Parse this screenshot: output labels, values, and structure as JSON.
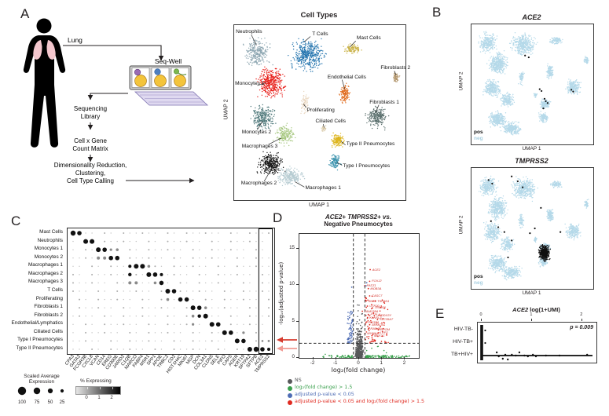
{
  "panels": {
    "a": {
      "label": "A",
      "workflow": {
        "organ_label": "Lung",
        "platform_label": "Seq-Well",
        "step1_line1": "Sequencing",
        "step1_line2": "Library",
        "step2_line1": "Cell x Gene",
        "step2_line2": "Count Matrix",
        "step3_line1": "Dimensionality Reduction,",
        "step3_line2": "Clustering,",
        "step3_line3": "Cell Type Calling"
      }
    },
    "b": {
      "label": "B"
    },
    "c": {
      "label": "C"
    },
    "d": {
      "label": "D"
    },
    "e": {
      "label": "E"
    }
  },
  "chart_data": {
    "cell_types_umap": {
      "type": "scatter",
      "title": "Cell Types",
      "xlabel": "UMAP 1",
      "ylabel": "UMAP 2",
      "clusters": [
        {
          "name": "Neutrophils",
          "color": "#8ea7b2",
          "cx": 0.135,
          "cy": 0.155,
          "rx": 0.095,
          "ry": 0.1,
          "n": 280
        },
        {
          "name": "T Cells",
          "color": "#2374ae",
          "cx": 0.43,
          "cy": 0.17,
          "rx": 0.125,
          "ry": 0.115,
          "n": 420
        },
        {
          "name": "Monocytes 1",
          "color": "#e8221d",
          "cx": 0.215,
          "cy": 0.33,
          "rx": 0.095,
          "ry": 0.115,
          "n": 400
        },
        {
          "name": "Monocytes 2",
          "color": "#527b7d",
          "cx": 0.17,
          "cy": 0.53,
          "rx": 0.085,
          "ry": 0.095,
          "n": 260
        },
        {
          "name": "Macrophages 3",
          "color": "#a6c77f",
          "cx": 0.295,
          "cy": 0.63,
          "rx": 0.07,
          "ry": 0.075,
          "n": 170
        },
        {
          "name": "Macrophages 2",
          "color": "#141414",
          "cx": 0.215,
          "cy": 0.79,
          "rx": 0.09,
          "ry": 0.08,
          "n": 300
        },
        {
          "name": "Macrophages 1",
          "color": "#b7ccd2",
          "cx": 0.33,
          "cy": 0.865,
          "rx": 0.095,
          "ry": 0.065,
          "n": 260
        },
        {
          "name": "Proliferating",
          "color": "#e9d6bf",
          "cx": 0.41,
          "cy": 0.44,
          "rx": 0.03,
          "ry": 0.075,
          "n": 70
        },
        {
          "name": "Mast Cells",
          "color": "#c9b145",
          "cx": 0.695,
          "cy": 0.135,
          "rx": 0.065,
          "ry": 0.035,
          "n": 100
        },
        {
          "name": "Fibroblasts 2",
          "color": "#b1946a",
          "cx": 0.945,
          "cy": 0.295,
          "rx": 0.025,
          "ry": 0.045,
          "n": 55
        },
        {
          "name": "Endothelial Cells",
          "color": "#e06c1f",
          "cx": 0.645,
          "cy": 0.39,
          "rx": 0.035,
          "ry": 0.07,
          "n": 130
        },
        {
          "name": "Fibroblasts 1",
          "color": "#5a6f6d",
          "cx": 0.835,
          "cy": 0.525,
          "rx": 0.075,
          "ry": 0.08,
          "n": 230
        },
        {
          "name": "Ciliated Cells",
          "color": "#d9c9a8",
          "cx": 0.525,
          "cy": 0.59,
          "rx": 0.018,
          "ry": 0.028,
          "n": 28
        },
        {
          "name": "Type II Pneumocytes",
          "color": "#ddb51e",
          "cx": 0.605,
          "cy": 0.66,
          "rx": 0.055,
          "ry": 0.05,
          "n": 160
        },
        {
          "name": "Type I Pneumocytes",
          "color": "#3c93ae",
          "cx": 0.59,
          "cy": 0.775,
          "rx": 0.045,
          "ry": 0.055,
          "n": 120
        }
      ],
      "labels": [
        {
          "t": "Neutrophils",
          "x": 0.01,
          "y": 0.025,
          "line": [
            0.1,
            0.055,
            0.13,
            0.115
          ]
        },
        {
          "t": "T Cells",
          "x": 0.455,
          "y": 0.04,
          "line": [
            0.445,
            0.065,
            0.41,
            0.095
          ]
        },
        {
          "t": "Mast Cells",
          "x": 0.715,
          "y": 0.062,
          "line": [
            0.71,
            0.09,
            0.675,
            0.125
          ]
        },
        {
          "t": "Fibroblasts 2",
          "x": 0.855,
          "y": 0.235,
          "line": [
            0.935,
            0.262,
            0.945,
            0.285
          ]
        },
        {
          "t": "Endothelial Cells",
          "x": 0.545,
          "y": 0.285,
          "line": [
            0.63,
            0.312,
            0.645,
            0.365
          ]
        },
        {
          "t": "Fibroblasts 1",
          "x": 0.79,
          "y": 0.43,
          "line": [
            0.845,
            0.455,
            0.825,
            0.5
          ]
        },
        {
          "t": "Monocytes 1",
          "x": 0.005,
          "y": 0.325,
          "line": [
            0.135,
            0.345,
            0.185,
            0.33
          ]
        },
        {
          "t": "Proliferating",
          "x": 0.425,
          "y": 0.475,
          "line": [
            0.42,
            0.472,
            0.405,
            0.45
          ]
        },
        {
          "t": "Ciliated Cells",
          "x": 0.475,
          "y": 0.538,
          "line": [
            0.52,
            0.565,
            0.525,
            0.585
          ]
        },
        {
          "t": "Monocytes 2",
          "x": 0.045,
          "y": 0.6,
          "line": [
            0.135,
            0.598,
            0.165,
            0.55
          ]
        },
        {
          "t": "Macrophages 3",
          "x": 0.045,
          "y": 0.683,
          "line": [
            0.2,
            0.682,
            0.275,
            0.645
          ]
        },
        {
          "t": "Type II Pneumocytes",
          "x": 0.655,
          "y": 0.668,
          "line": [
            0.65,
            0.685,
            0.625,
            0.665
          ]
        },
        {
          "t": "Type I Pneumocytes",
          "x": 0.635,
          "y": 0.793,
          "line": [
            0.63,
            0.8,
            0.6,
            0.785
          ]
        },
        {
          "t": "Macrophages 2",
          "x": 0.04,
          "y": 0.893,
          "line": [
            0.175,
            0.892,
            0.21,
            0.835
          ]
        },
        {
          "t": "Macrophages 1",
          "x": 0.415,
          "y": 0.918,
          "line": [
            0.41,
            0.925,
            0.355,
            0.895
          ]
        }
      ]
    },
    "ace2_umap": {
      "type": "scatter",
      "title": "ACE2",
      "xlabel": "UMAP 1",
      "ylabel": "UMAP 2",
      "legend_pos": "pos",
      "legend_neg": "neg",
      "neg_color": "#b5d9e9",
      "pos_color": "#111111",
      "pos_points": [
        [
          0.44,
          0.26
        ],
        [
          0.47,
          0.275
        ],
        [
          0.56,
          0.54
        ],
        [
          0.575,
          0.555
        ],
        [
          0.6,
          0.62
        ],
        [
          0.61,
          0.64
        ],
        [
          0.625,
          0.655
        ],
        [
          0.82,
          0.545
        ],
        [
          0.835,
          0.56
        ],
        [
          0.59,
          0.7
        ]
      ]
    },
    "tmprss2_umap": {
      "type": "scatter",
      "title": "TMPRSS2",
      "xlabel": "UMAP 1",
      "ylabel": "UMAP 2",
      "legend_pos": "pos",
      "legend_neg": "neg",
      "neg_color": "#b5d9e9",
      "pos_color": "#111111",
      "pos_blob": {
        "cx": 0.6,
        "cy": 0.7,
        "rx": 0.055,
        "ry": 0.085,
        "n": 420
      },
      "pos_points": [
        [
          0.14,
          0.1
        ],
        [
          0.17,
          0.13
        ],
        [
          0.33,
          0.07
        ],
        [
          0.38,
          0.11
        ],
        [
          0.42,
          0.16
        ],
        [
          0.16,
          0.44
        ],
        [
          0.22,
          0.49
        ],
        [
          0.27,
          0.53
        ],
        [
          0.33,
          0.6
        ],
        [
          0.48,
          0.54
        ],
        [
          0.52,
          0.5
        ],
        [
          0.73,
          0.53
        ],
        [
          0.57,
          0.33
        ],
        [
          0.3,
          0.74
        ]
      ]
    },
    "marker_dotplot": {
      "type": "table",
      "rows": [
        "Mast Cells",
        "Neutrophils",
        "Monocytes 1",
        "Monocytes 2",
        "Macrophages 1",
        "Macrophages 2",
        "Macrophages 3",
        "T Cells",
        "Proliferating",
        "Fibroblasts 1",
        "Fibroblasts 2",
        "Endothelial/Lymphatics",
        "Ciliated Cells",
        "Type I Pneumocytes",
        "Type II Pneumocytes"
      ],
      "genes": [
        "CPA3",
        "GATA2",
        "FCGR3B",
        "CXCL8",
        "VCAN",
        "CD14",
        "EREG",
        "CD300E",
        "JARID2",
        "C1QB",
        "MARCO",
        "FABP4",
        "MSR1",
        "SPP1",
        "APOE",
        "TRBC2",
        "CD2",
        "HIST1H4C",
        "MKI67",
        "MGP",
        "DCN",
        "COL3A1",
        "CLDN5",
        "SELE",
        "PIFO",
        "CAPS",
        "AGER",
        "KRT19",
        "SFTPA2",
        "SFTPB",
        "ACE2",
        "TMPRSS2"
      ],
      "dots": [
        [
          0,
          0,
          3.2,
          "k"
        ],
        [
          0,
          1,
          2.8,
          "k"
        ],
        [
          1,
          2,
          3.0,
          "k"
        ],
        [
          1,
          3,
          3.0,
          "k"
        ],
        [
          2,
          4,
          3.0,
          "k"
        ],
        [
          2,
          5,
          2.8,
          "k"
        ],
        [
          2,
          6,
          1.6,
          "m"
        ],
        [
          2,
          7,
          1.8,
          "m"
        ],
        [
          3,
          4,
          2.0,
          "m"
        ],
        [
          3,
          5,
          2.0,
          "m"
        ],
        [
          3,
          6,
          2.8,
          "k"
        ],
        [
          3,
          7,
          2.8,
          "k"
        ],
        [
          4,
          9,
          2.0,
          "k"
        ],
        [
          4,
          10,
          3.0,
          "k"
        ],
        [
          4,
          11,
          3.0,
          "k"
        ],
        [
          4,
          12,
          1.8,
          "m"
        ],
        [
          5,
          9,
          2.2,
          "k"
        ],
        [
          5,
          12,
          3.0,
          "k"
        ],
        [
          5,
          13,
          2.8,
          "k"
        ],
        [
          5,
          14,
          2.0,
          "k"
        ],
        [
          6,
          9,
          2.0,
          "m"
        ],
        [
          6,
          10,
          2.0,
          "m"
        ],
        [
          6,
          13,
          1.8,
          "m"
        ],
        [
          6,
          14,
          2.8,
          "k"
        ],
        [
          7,
          15,
          3.0,
          "k"
        ],
        [
          7,
          16,
          2.8,
          "k"
        ],
        [
          8,
          15,
          1.8,
          "m"
        ],
        [
          8,
          17,
          2.8,
          "k"
        ],
        [
          8,
          18,
          2.8,
          "k"
        ],
        [
          9,
          19,
          3.0,
          "k"
        ],
        [
          9,
          20,
          2.8,
          "k"
        ],
        [
          9,
          21,
          1.8,
          "m"
        ],
        [
          10,
          19,
          1.8,
          "m"
        ],
        [
          10,
          20,
          2.2,
          "k"
        ],
        [
          10,
          21,
          3.0,
          "k"
        ],
        [
          11,
          22,
          3.0,
          "k"
        ],
        [
          11,
          23,
          2.8,
          "k"
        ],
        [
          11,
          19,
          1.6,
          "m"
        ],
        [
          12,
          24,
          3.0,
          "k"
        ],
        [
          12,
          25,
          2.8,
          "k"
        ],
        [
          12,
          27,
          1.6,
          "m"
        ],
        [
          13,
          26,
          3.0,
          "k"
        ],
        [
          13,
          27,
          2.8,
          "k"
        ],
        [
          13,
          30,
          1.3,
          "m"
        ],
        [
          13,
          31,
          1.4,
          "m"
        ],
        [
          14,
          28,
          3.0,
          "k"
        ],
        [
          14,
          29,
          3.2,
          "k"
        ],
        [
          14,
          30,
          2.8,
          "k"
        ],
        [
          14,
          31,
          2.0,
          "k"
        ]
      ],
      "highlight_cols": [
        30,
        31
      ],
      "arrow_rows": [
        13,
        14
      ],
      "arrow_colors": [
        "#d63c2f",
        "#f19a93"
      ],
      "size_legend": {
        "title_line1": "Scaled Average",
        "title_line2": "Expression",
        "values": [
          "100",
          "75",
          "50",
          "25"
        ]
      },
      "pct_legend": {
        "title": "% Expressing",
        "ticks": [
          "0",
          "1",
          "2"
        ]
      }
    },
    "volcano": {
      "type": "scatter",
      "title_line1": "ACE2+ TMPRSS2+ vs.",
      "title_line2": "Negative Pneumocytes",
      "xlabel": "log₂(fold change)",
      "ylabel": "-log₁₀(adjusted p-value)",
      "xticks": [
        "-2",
        "-1",
        "0",
        "1",
        "2"
      ],
      "xtick_vals": [
        -2,
        -1,
        0,
        1,
        2
      ],
      "yticks": [
        "0",
        "5",
        "10",
        "15"
      ],
      "ytick_vals": [
        0,
        5,
        10,
        15
      ],
      "xlim": [
        -2.6,
        2.6
      ],
      "ylim": [
        0,
        17
      ],
      "vlines": [
        -0.25,
        0.25
      ],
      "hline": 2,
      "gen": {
        "seed": 11,
        "gray_n": 420,
        "green_n": 170,
        "blue_n": 70,
        "red_n": 80
      },
      "colors": {
        "ns": "#58595b",
        "fc": "#3aa04d",
        "p": "#4f6db5",
        "both": "#e02a20"
      },
      "legend": [
        {
          "label": "NS",
          "color": "#58595b"
        },
        {
          "label": "log₂(fold change) > 1.5",
          "color": "#3aa04d"
        },
        {
          "label": "adjusted p-value < 0.05",
          "color": "#4f6db5"
        },
        {
          "label": "adjusted p-value < 0.05 and log₂(fold change) > 1.5",
          "color": "#e02a20"
        }
      ],
      "gene_labels": [
        {
          "g": "ACE2",
          "x": 0.52,
          "y": 12.1
        },
        {
          "g": "FOXJ2",
          "x": 0.5,
          "y": 10.5
        },
        {
          "g": "PATZ1",
          "x": 0.28,
          "y": 9.9
        },
        {
          "g": "MOB3A",
          "x": 0.44,
          "y": 9.5
        },
        {
          "g": "CASC7",
          "x": 0.5,
          "y": 8.5
        },
        {
          "g": "SNF8",
          "x": 0.34,
          "y": 7.8
        },
        {
          "g": "TSPAN1",
          "x": 0.74,
          "y": 7.8
        },
        {
          "g": "UTP20",
          "x": 0.4,
          "y": 7.1
        },
        {
          "g": "TRIM06",
          "x": 0.62,
          "y": 6.85
        },
        {
          "g": "FAM138A",
          "x": 0.18,
          "y": 6.4
        },
        {
          "g": "PTPLA",
          "x": 0.44,
          "y": 5.95
        },
        {
          "g": "DDX3Y",
          "x": 0.9,
          "y": 5.85
        },
        {
          "g": "KANSL3",
          "x": 0.4,
          "y": 5.45
        },
        {
          "g": "SLC35A7",
          "x": 0.84,
          "y": 5.25
        },
        {
          "g": "PIK3R1",
          "x": 0.34,
          "y": 4.85
        },
        {
          "g": "ARMC9",
          "x": 0.5,
          "y": 4.55
        },
        {
          "g": "RAB4B",
          "x": 0.44,
          "y": 3.95
        },
        {
          "g": "BPGM",
          "x": 0.88,
          "y": 3.85
        },
        {
          "g": "MYNN",
          "x": 0.3,
          "y": 3.35
        },
        {
          "g": "LRP2",
          "x": 0.86,
          "y": 3.4
        },
        {
          "g": "MEF2C",
          "x": 0.6,
          "y": 3.05
        }
      ],
      "extra_blue": [
        [
          0.3,
          9.9
        ],
        [
          0.33,
          10.3
        ],
        [
          -0.32,
          9.7
        ]
      ]
    },
    "ace2_by_group": {
      "type": "scatter",
      "title_gene": "ACE2",
      "title_rest": " log(1+UMI)",
      "groups": [
        "HIV-TB-",
        "HIV-TB+",
        "TB+HIV+"
      ],
      "xticks": [
        "0",
        "1",
        "2"
      ],
      "xtick_vals": [
        0,
        1,
        2
      ],
      "pvalue": "p = 0.009",
      "zero_bar": true,
      "row_line_group": 2,
      "points": [
        [
          0.3,
          -4
        ],
        [
          0.34,
          1
        ],
        [
          0.42,
          4
        ],
        [
          0.47,
          -1
        ],
        [
          0.52,
          5
        ],
        [
          0.6,
          -1
        ],
        [
          0.68,
          0
        ],
        [
          0.75,
          -4
        ],
        [
          0.85,
          0
        ],
        [
          0.92,
          1
        ],
        [
          1.02,
          -1
        ],
        [
          1.08,
          1
        ],
        [
          1.28,
          0
        ],
        [
          1.55,
          0
        ],
        [
          2.1,
          -1
        ]
      ],
      "near_zero_points": [
        [
          0.07,
          0
        ],
        [
          0.07,
          1
        ]
      ]
    }
  }
}
